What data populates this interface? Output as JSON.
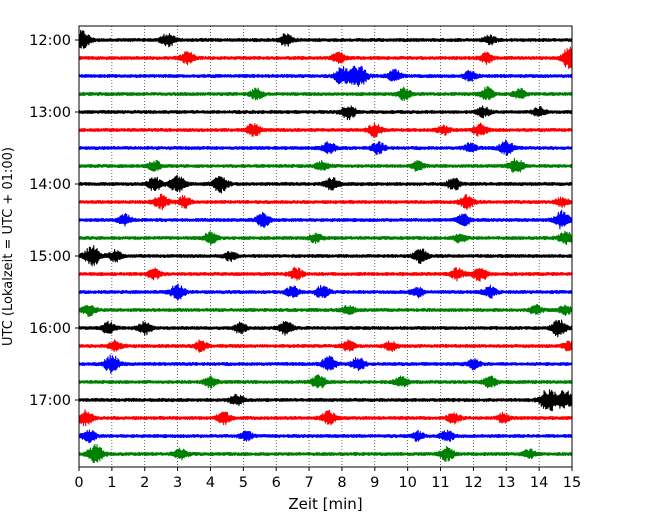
{
  "chart_data": {
    "type": "line",
    "title": "",
    "xlabel": "Zeit  [min]",
    "ylabel": "UTC (Lokalzeit = UTC + 01:00)",
    "xlim": [
      0,
      15
    ],
    "x_ticks": [
      "0",
      "1",
      "2",
      "3",
      "4",
      "5",
      "6",
      "7",
      "8",
      "9",
      "10",
      "11",
      "12",
      "13",
      "14",
      "15"
    ],
    "y_ticks": [
      "12:00",
      "13:00",
      "14:00",
      "15:00",
      "16:00",
      "17:00"
    ],
    "grid": "vertical-dotted",
    "legend": "none",
    "trace_interval_minutes": 15,
    "start_time": "12:00",
    "trace_colors": [
      "#000000",
      "#ff0000",
      "#0000ff",
      "#008000"
    ],
    "series": [
      {
        "time": "12:00",
        "bursts": [
          [
            0.1,
            2.0
          ],
          [
            2.7,
            1.5
          ],
          [
            6.3,
            1.4
          ],
          [
            12.5,
            1.0
          ]
        ]
      },
      {
        "time": "12:15",
        "bursts": [
          [
            3.3,
            1.4
          ],
          [
            7.9,
            1.2
          ],
          [
            12.4,
            1.2
          ],
          [
            15.0,
            3.2
          ]
        ]
      },
      {
        "time": "12:30",
        "bursts": [
          [
            8.5,
            2.6
          ],
          [
            8.0,
            1.9
          ],
          [
            9.6,
            1.3
          ],
          [
            11.9,
            1.1
          ]
        ]
      },
      {
        "time": "12:45",
        "bursts": [
          [
            5.4,
            1.2
          ],
          [
            9.9,
            1.3
          ],
          [
            12.4,
            1.4
          ],
          [
            13.4,
            1.1
          ]
        ]
      },
      {
        "time": "13:00",
        "bursts": [
          [
            8.2,
            1.6
          ],
          [
            12.3,
            1.2
          ],
          [
            14.0,
            1.0
          ]
        ]
      },
      {
        "time": "13:15",
        "bursts": [
          [
            5.3,
            1.5
          ],
          [
            9.0,
            1.4
          ],
          [
            12.2,
            1.3
          ],
          [
            11.1,
            1.0
          ]
        ]
      },
      {
        "time": "13:30",
        "bursts": [
          [
            7.6,
            1.3
          ],
          [
            9.1,
            1.3
          ],
          [
            13.0,
            1.6
          ],
          [
            11.9,
            1.0
          ]
        ]
      },
      {
        "time": "13:45",
        "bursts": [
          [
            2.3,
            1.1
          ],
          [
            7.4,
            1.1
          ],
          [
            13.3,
            1.6
          ],
          [
            10.3,
            1.0
          ]
        ]
      },
      {
        "time": "14:00",
        "bursts": [
          [
            2.3,
            1.5
          ],
          [
            3.0,
            2.0
          ],
          [
            4.3,
            1.8
          ],
          [
            7.7,
            1.4
          ],
          [
            11.4,
            1.3
          ]
        ]
      },
      {
        "time": "14:15",
        "bursts": [
          [
            2.5,
            1.5
          ],
          [
            3.2,
            1.3
          ],
          [
            11.8,
            1.5
          ],
          [
            14.7,
            1.0
          ]
        ]
      },
      {
        "time": "14:30",
        "bursts": [
          [
            5.6,
            1.5
          ],
          [
            1.4,
            1.2
          ],
          [
            11.7,
            1.3
          ],
          [
            14.7,
            2.0
          ]
        ]
      },
      {
        "time": "14:45",
        "bursts": [
          [
            4.0,
            1.3
          ],
          [
            7.2,
            1.0
          ],
          [
            11.6,
            1.0
          ],
          [
            14.8,
            1.4
          ]
        ]
      },
      {
        "time": "15:00",
        "bursts": [
          [
            0.4,
            2.2
          ],
          [
            1.1,
            1.2
          ],
          [
            10.4,
            1.6
          ],
          [
            4.6,
            1.0
          ]
        ]
      },
      {
        "time": "15:15",
        "bursts": [
          [
            2.3,
            1.2
          ],
          [
            6.6,
            1.4
          ],
          [
            12.2,
            1.6
          ],
          [
            11.5,
            1.3
          ]
        ]
      },
      {
        "time": "15:30",
        "bursts": [
          [
            3.0,
            1.7
          ],
          [
            6.5,
            1.2
          ],
          [
            7.4,
            1.4
          ],
          [
            10.3,
            1.1
          ],
          [
            12.5,
            1.3
          ]
        ]
      },
      {
        "time": "15:45",
        "bursts": [
          [
            0.3,
            1.2
          ],
          [
            8.2,
            1.0
          ],
          [
            13.9,
            1.0
          ],
          [
            14.8,
            1.0
          ]
        ]
      },
      {
        "time": "16:00",
        "bursts": [
          [
            0.9,
            1.3
          ],
          [
            2.0,
            1.4
          ],
          [
            4.9,
            1.1
          ],
          [
            6.3,
            1.4
          ],
          [
            14.6,
            1.8
          ]
        ]
      },
      {
        "time": "16:15",
        "bursts": [
          [
            1.1,
            1.2
          ],
          [
            3.7,
            1.2
          ],
          [
            8.2,
            1.2
          ],
          [
            9.5,
            1.0
          ],
          [
            14.9,
            1.0
          ]
        ]
      },
      {
        "time": "16:30",
        "bursts": [
          [
            1.0,
            2.0
          ],
          [
            7.6,
            1.6
          ],
          [
            8.5,
            1.4
          ],
          [
            12.0,
            1.1
          ]
        ]
      },
      {
        "time": "16:45",
        "bursts": [
          [
            4.0,
            1.3
          ],
          [
            7.3,
            1.5
          ],
          [
            9.8,
            1.2
          ],
          [
            12.5,
            1.3
          ]
        ]
      },
      {
        "time": "17:00",
        "bursts": [
          [
            4.8,
            1.3
          ],
          [
            14.3,
            2.8
          ],
          [
            14.8,
            2.0
          ]
        ]
      },
      {
        "time": "17:15",
        "bursts": [
          [
            0.2,
            1.7
          ],
          [
            4.4,
            1.4
          ],
          [
            7.6,
            1.5
          ],
          [
            11.4,
            1.2
          ],
          [
            12.9,
            1.0
          ]
        ]
      },
      {
        "time": "17:30",
        "bursts": [
          [
            0.3,
            1.4
          ],
          [
            5.1,
            1.0
          ],
          [
            10.3,
            1.0
          ],
          [
            11.2,
            1.3
          ]
        ]
      },
      {
        "time": "17:45",
        "bursts": [
          [
            0.5,
            2.0
          ],
          [
            3.1,
            1.2
          ],
          [
            11.2,
            1.5
          ],
          [
            13.7,
            1.0
          ]
        ]
      }
    ]
  }
}
